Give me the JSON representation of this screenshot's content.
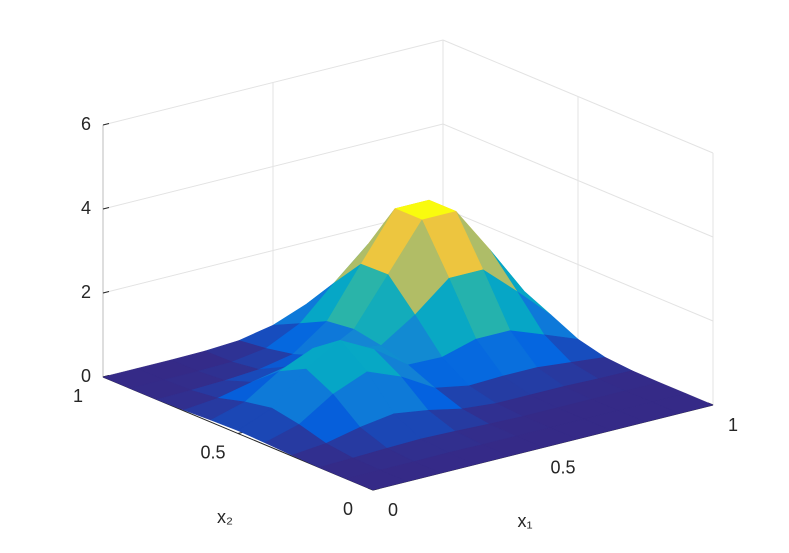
{
  "chart_data": {
    "type": "surface",
    "x1": [
      0,
      0.1,
      0.2,
      0.3,
      0.4,
      0.5,
      0.6,
      0.7,
      0.8,
      0.9,
      1
    ],
    "x2": [
      0,
      0.1,
      0.2,
      0.3,
      0.4,
      0.5,
      0.6,
      0.7,
      0.8,
      0.9,
      1
    ],
    "z": [
      [
        0,
        0,
        0,
        0,
        0,
        0,
        0,
        0,
        0,
        0,
        0
      ],
      [
        0,
        0,
        0,
        0.01,
        0,
        0,
        0,
        0,
        0,
        0,
        0
      ],
      [
        0,
        0.02,
        0.05,
        0.07,
        0.05,
        0.02,
        0,
        0,
        0,
        0,
        0
      ],
      [
        0.02,
        0.1,
        0.28,
        0.4,
        0.28,
        0.11,
        0.04,
        0.04,
        0.04,
        0.02,
        0.01
      ],
      [
        0.05,
        0.28,
        0.8,
        1.13,
        0.81,
        0.34,
        0.19,
        0.22,
        0.22,
        0.14,
        0.06
      ],
      [
        0.07,
        0.4,
        1.13,
        1.61,
        1.19,
        0.62,
        0.6,
        0.83,
        0.83,
        0.53,
        0.22
      ],
      [
        0.05,
        0.28,
        0.8,
        1.15,
        0.94,
        0.81,
        1.34,
        2.01,
        2.01,
        1.29,
        0.53
      ],
      [
        0.02,
        0.1,
        0.28,
        0.44,
        0.5,
        0.93,
        2.03,
        3.13,
        3.13,
        2.01,
        0.83
      ],
      [
        0,
        0.02,
        0.05,
        0.11,
        0.27,
        0.85,
        2.01,
        3.13,
        3.13,
        2.01,
        0.83
      ],
      [
        0,
        0,
        0,
        0.02,
        0.14,
        0.53,
        1.29,
        2.01,
        2.01,
        1.29,
        0.53
      ],
      [
        0,
        0,
        0,
        0.01,
        0.06,
        0.22,
        0.53,
        0.83,
        0.83,
        0.53,
        0.22
      ]
    ],
    "xlabel": "x₁",
    "ylabel": "x₂",
    "xlim": [
      0,
      1
    ],
    "xticks": [
      0,
      0.5,
      1
    ],
    "ylim": [
      0,
      1
    ],
    "yticks": [
      0,
      0.5,
      1
    ],
    "zlim": [
      0,
      6
    ],
    "zticks": [
      0,
      2,
      4,
      6
    ],
    "grid": true,
    "colormap": [
      "#352a87",
      "#0363e1",
      "#1485d4",
      "#06a7c6",
      "#38b99e",
      "#92bf73",
      "#d9ba56",
      "#fcce2e",
      "#f9fb0e"
    ]
  }
}
